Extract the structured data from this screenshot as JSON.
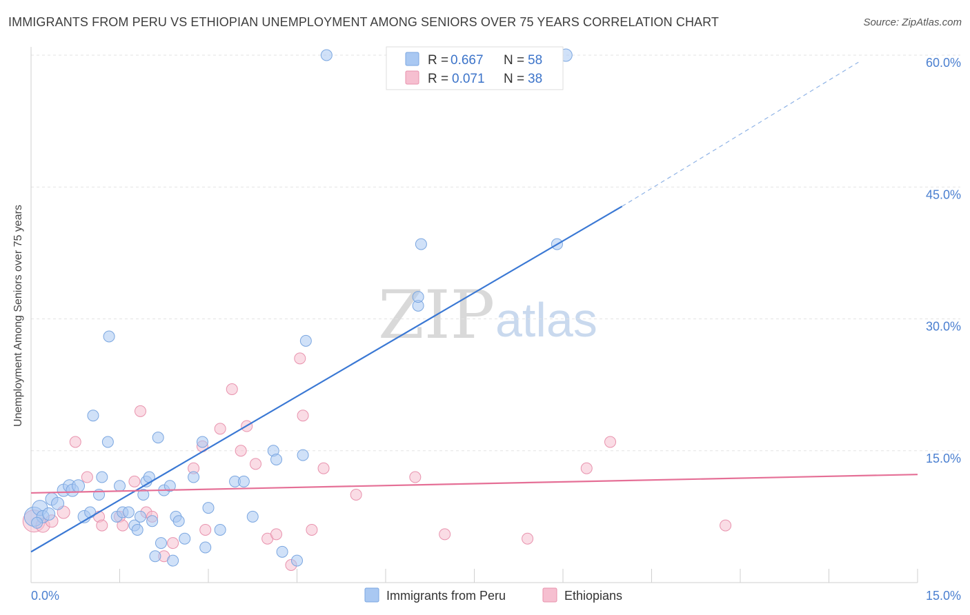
{
  "title": "IMMIGRANTS FROM PERU VS ETHIOPIAN UNEMPLOYMENT AMONG SENIORS OVER 75 YEARS CORRELATION CHART",
  "source": "Source: ZipAtlas.com",
  "watermark": {
    "zip": "ZIP",
    "atlas": "atlas"
  },
  "legend": {
    "rows": [
      {
        "r_label": "R =",
        "r_value": "0.667",
        "n_label": "N =",
        "n_value": "58",
        "color": "#a9c8f2",
        "stroke": "#7aa6e0"
      },
      {
        "r_label": "R =",
        "r_value": "0.071",
        "n_label": "N =",
        "n_value": "38",
        "color": "#f6bfd0",
        "stroke": "#e892ad"
      }
    ]
  },
  "bottom_legend": [
    {
      "label": "Immigrants from Peru",
      "color": "#a9c8f2",
      "stroke": "#7aa6e0"
    },
    {
      "label": "Ethiopians",
      "color": "#f6bfd0",
      "stroke": "#e892ad"
    }
  ],
  "chart_data": {
    "type": "scatter",
    "title": "IMMIGRANTS FROM PERU VS ETHIOPIAN UNEMPLOYMENT AMONG SENIORS OVER 75 YEARS CORRELATION CHART",
    "xlabel": "",
    "ylabel": "Unemployment Among Seniors over 75 years",
    "xlim": [
      0,
      15
    ],
    "ylim": [
      0,
      60
    ],
    "x_tick_labels": [
      "0.0%",
      "15.0%"
    ],
    "y_ticks": [
      15,
      30,
      45,
      60
    ],
    "y_tick_labels": [
      "15.0%",
      "30.0%",
      "45.0%",
      "60.0%"
    ],
    "grid": "horizontal dashed",
    "colors": {
      "peru": "#3a78d4",
      "ethiopians": "#e56f96"
    },
    "series": [
      {
        "name": "Immigrants from Peru",
        "r": 0.667,
        "n": 58,
        "trend": {
          "x0": 0,
          "y0": 3.5,
          "x1": 10.0,
          "y1": 42.8,
          "dash_to_x": 14.0,
          "dash_to_y": 59.2
        },
        "points": [
          [
            0.05,
            7.5,
            14
          ],
          [
            0.15,
            8.5,
            11
          ],
          [
            0.2,
            7.5,
            9
          ],
          [
            0.3,
            7.8,
            9
          ],
          [
            0.35,
            9.5,
            9
          ],
          [
            0.45,
            9.0,
            9
          ],
          [
            0.55,
            10.5,
            9
          ],
          [
            0.65,
            11.0,
            9
          ],
          [
            0.7,
            10.5,
            9
          ],
          [
            0.8,
            11.0,
            9
          ],
          [
            0.9,
            7.5,
            9
          ],
          [
            1.0,
            8.0,
            8
          ],
          [
            1.05,
            19.0,
            8
          ],
          [
            1.15,
            10.0,
            8
          ],
          [
            1.2,
            12.0,
            8
          ],
          [
            1.3,
            16.0,
            8
          ],
          [
            1.32,
            28.0,
            8
          ],
          [
            1.45,
            7.5,
            8
          ],
          [
            1.5,
            11.0,
            8
          ],
          [
            1.55,
            8.0,
            8
          ],
          [
            1.65,
            8.0,
            8
          ],
          [
            1.75,
            6.5,
            8
          ],
          [
            1.8,
            6.0,
            8
          ],
          [
            1.85,
            7.5,
            8
          ],
          [
            1.9,
            10.0,
            8
          ],
          [
            1.95,
            11.5,
            8
          ],
          [
            2.0,
            12.0,
            8
          ],
          [
            2.05,
            7.0,
            8
          ],
          [
            2.1,
            3.0,
            8
          ],
          [
            2.15,
            16.5,
            8
          ],
          [
            2.2,
            4.5,
            8
          ],
          [
            2.25,
            10.5,
            8
          ],
          [
            2.35,
            11.0,
            8
          ],
          [
            2.4,
            2.5,
            8
          ],
          [
            2.45,
            7.5,
            8
          ],
          [
            2.5,
            7.0,
            8
          ],
          [
            2.6,
            5.0,
            8
          ],
          [
            2.75,
            12.0,
            8
          ],
          [
            2.9,
            16.0,
            8
          ],
          [
            2.95,
            4.0,
            8
          ],
          [
            3.0,
            8.5,
            8
          ],
          [
            3.2,
            6.0,
            8
          ],
          [
            3.45,
            11.5,
            8
          ],
          [
            3.6,
            11.5,
            8
          ],
          [
            3.75,
            7.5,
            8
          ],
          [
            4.1,
            15.0,
            8
          ],
          [
            4.15,
            14.0,
            8
          ],
          [
            4.25,
            3.5,
            8
          ],
          [
            4.5,
            2.5,
            8
          ],
          [
            4.6,
            14.5,
            8
          ],
          [
            4.65,
            27.5,
            8
          ],
          [
            5.0,
            60.0,
            8
          ],
          [
            6.55,
            31.5,
            8
          ],
          [
            6.55,
            32.5,
            8
          ],
          [
            6.6,
            38.5,
            8
          ],
          [
            8.9,
            38.5,
            8
          ],
          [
            9.05,
            60.0,
            9
          ],
          [
            0.1,
            6.8,
            8
          ]
        ]
      },
      {
        "name": "Ethiopians",
        "r": 0.071,
        "n": 38,
        "trend": {
          "x0": 0,
          "y0": 10.2,
          "x1": 15.0,
          "y1": 12.3
        },
        "points": [
          [
            0.05,
            7.0,
            16
          ],
          [
            0.2,
            6.5,
            10
          ],
          [
            0.35,
            7.0,
            9
          ],
          [
            0.55,
            8.0,
            9
          ],
          [
            0.75,
            16.0,
            8
          ],
          [
            0.95,
            12.0,
            8
          ],
          [
            1.15,
            7.5,
            8
          ],
          [
            1.2,
            6.5,
            8
          ],
          [
            1.5,
            7.5,
            8
          ],
          [
            1.55,
            6.5,
            8
          ],
          [
            1.75,
            11.5,
            8
          ],
          [
            1.85,
            19.5,
            8
          ],
          [
            1.95,
            8.0,
            8
          ],
          [
            2.05,
            7.5,
            8
          ],
          [
            2.25,
            3.0,
            8
          ],
          [
            2.4,
            4.5,
            8
          ],
          [
            2.75,
            13.0,
            8
          ],
          [
            2.9,
            15.5,
            8
          ],
          [
            2.95,
            6.0,
            8
          ],
          [
            3.2,
            17.5,
            8
          ],
          [
            3.4,
            22.0,
            8
          ],
          [
            3.55,
            15.0,
            8
          ],
          [
            3.65,
            17.8,
            8
          ],
          [
            3.8,
            13.5,
            8
          ],
          [
            4.0,
            5.0,
            8
          ],
          [
            4.15,
            5.5,
            8
          ],
          [
            4.4,
            2.0,
            8
          ],
          [
            4.55,
            25.5,
            8
          ],
          [
            4.6,
            19.0,
            8
          ],
          [
            4.75,
            6.0,
            8
          ],
          [
            4.95,
            13.0,
            8
          ],
          [
            5.5,
            10.0,
            8
          ],
          [
            6.5,
            12.0,
            8
          ],
          [
            7.0,
            5.5,
            8
          ],
          [
            8.4,
            5.0,
            8
          ],
          [
            9.4,
            13.0,
            8
          ],
          [
            9.8,
            16.0,
            8
          ],
          [
            11.75,
            6.5,
            8
          ]
        ]
      }
    ]
  }
}
